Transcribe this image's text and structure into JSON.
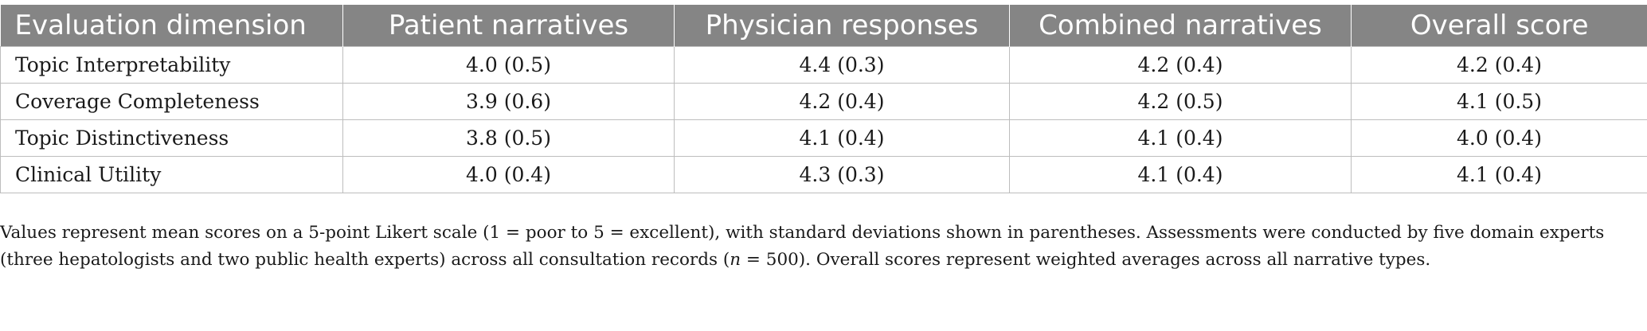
{
  "table": {
    "headers": [
      "Evaluation dimension",
      "Patient narratives",
      "Physician responses",
      "Combined narratives",
      "Overall score"
    ],
    "rows": [
      {
        "label": "Topic Interpretability",
        "values": [
          "4.0 (0.5)",
          "4.4 (0.3)",
          "4.2 (0.4)",
          "4.2 (0.4)"
        ]
      },
      {
        "label": "Coverage Completeness",
        "values": [
          "3.9 (0.6)",
          "4.2 (0.4)",
          "4.2 (0.5)",
          "4.1 (0.5)"
        ]
      },
      {
        "label": "Topic Distinctiveness",
        "values": [
          "3.8 (0.5)",
          "4.1 (0.4)",
          "4.1 (0.4)",
          "4.0 (0.4)"
        ]
      },
      {
        "label": "Clinical Utility",
        "values": [
          "4.0 (0.4)",
          "4.3 (0.3)",
          "4.1 (0.4)",
          "4.1 (0.4)"
        ]
      }
    ]
  },
  "footnote": {
    "before_n": "Values represent mean scores on a 5-point Likert scale (1 = poor to 5 = excellent), with standard deviations shown in parentheses. Assessments were conducted by five domain experts (three hepatologists and two public health experts) across all consultation records (",
    "n_symbol": "n",
    "after_n": " = 500). Overall scores represent weighted averages across all narrative types."
  },
  "colors": {
    "header_background": "#858585",
    "header_text": "#ffffff",
    "grid_lines": "#bdbdbd",
    "body_text": "#1a1a1a"
  }
}
